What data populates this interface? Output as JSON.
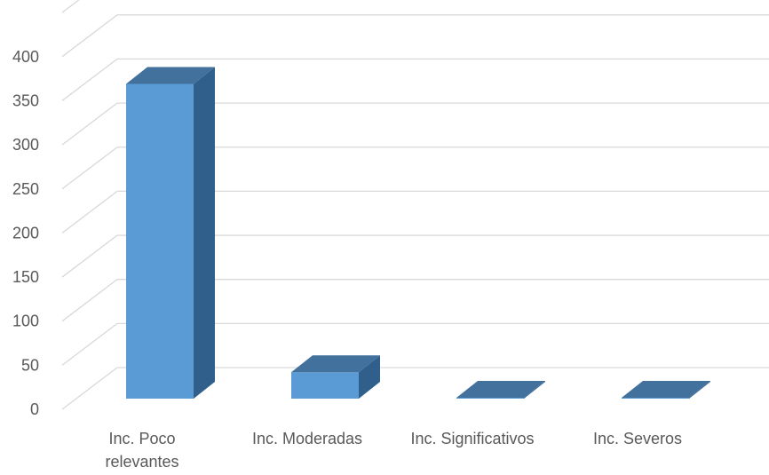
{
  "chart_data": {
    "type": "bar",
    "style": "3d-column",
    "categories": [
      "Inc. Poco relevantes",
      "Inc. Moderadas",
      "Inc. Significativos",
      "Inc. Severos"
    ],
    "category_lines": [
      [
        "Inc. Poco",
        "relevantes"
      ],
      [
        "Inc. Moderadas"
      ],
      [
        "Inc. Significativos"
      ],
      [
        "Inc. Severos"
      ]
    ],
    "values": [
      357,
      30,
      1,
      1
    ],
    "yticks": [
      "0",
      "50",
      "100",
      "150",
      "200",
      "250",
      "300",
      "350",
      "400"
    ],
    "ylim": [
      0,
      450
    ],
    "grid": true,
    "legend": "none",
    "colors": {
      "front": "#5b9bd5",
      "top": "#41719c",
      "side": "#2f5f8a",
      "grid": "#d9d9d9",
      "text": "#595959"
    }
  }
}
